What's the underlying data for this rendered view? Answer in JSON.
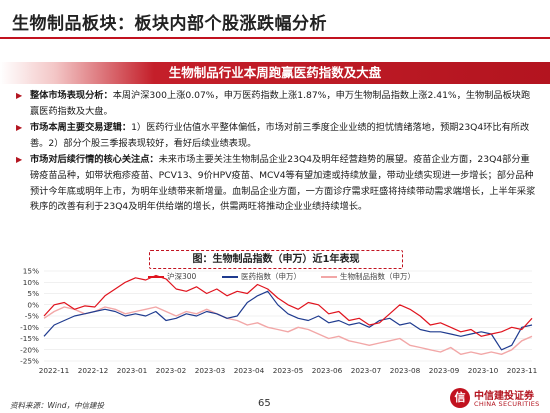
{
  "header": {
    "title": "生物制品板块：板块内部个股涨跌幅分析"
  },
  "banner": {
    "text": "生物制品行业本周跑赢医药指数及大盘"
  },
  "bullets": [
    {
      "label": "整体市场表现分析：",
      "text": "本周沪深300上涨0.07%，申万医药指数上涨1.87%，申万生物制品指数上涨2.41%，生物制品板块跑赢医药指数及大盘。"
    },
    {
      "label": "市场本周主要交易逻辑：",
      "text": "1）医药行业估值水平整体偏低，市场对前三季度企业业绩的担忧情绪落地，预期23Q4环比有所改善。2）部分个股三季报表现较好，看好后续业绩表现。"
    },
    {
      "label": "市场对后续行情的核心关注点：",
      "text": "未来市场主要关注生物制品企业23Q4及明年经营趋势的展望。疫苗企业方面，23Q4部分重磅疫苗品种，如带状疱疹疫苗、PCV13、9价HPV疫苗、MCV4等有望加速或持续放量，带动业绩实现进一步增长；部分品种预计今年底或明年上市，为明年业绩带来新增量。血制品企业方面，一方面诊疗需求旺盛将持续带动需求端增长，上半年采浆秩序的改善有利于23Q4及明年供给端的增长，供需两旺将推动企业业绩持续增长。"
    }
  ],
  "chart_data": {
    "type": "line",
    "title": "图：生物制品指数（申万）近1年表现",
    "x_ticks": [
      "2022-11",
      "2022-12",
      "2023-01",
      "2023-02",
      "2023-03",
      "2023-04",
      "2023-05",
      "2023-06",
      "2023-07",
      "2023-08",
      "2023-09",
      "2023-10",
      "2023-11"
    ],
    "y_ticks": [
      "15%",
      "10%",
      "5%",
      "0%",
      "-5%",
      "-10%",
      "-15%",
      "-20%",
      "-25%"
    ],
    "ylim": [
      -25,
      15
    ],
    "legend_position": "top",
    "series": [
      {
        "name": "沪深300",
        "color": "#e0141e",
        "values": [
          -5,
          0,
          1,
          -2,
          -0.5,
          -1,
          4,
          7,
          10,
          12,
          11,
          13,
          11.5,
          7,
          6,
          8,
          5,
          7,
          4,
          6,
          5,
          9,
          7,
          3,
          0,
          -2,
          1,
          0,
          -4,
          -3,
          -7,
          -6,
          -9,
          -8,
          -4,
          0,
          -2,
          -5,
          -9,
          -8,
          -10,
          -12,
          -11,
          -14,
          -13,
          -12,
          -10,
          -11,
          -6
        ]
      },
      {
        "name": "医药指数（申万）",
        "color": "#1f3b8f",
        "values": [
          -14,
          -9,
          -7,
          -5,
          -4,
          -3,
          -2,
          -3,
          -5,
          -4,
          -5,
          -3,
          -7,
          -6,
          -4,
          -5,
          -3,
          -4,
          -6,
          -5,
          1,
          4,
          6,
          0,
          -4,
          -6,
          -7,
          -5,
          -8,
          -7,
          -9,
          -8,
          -10,
          -7,
          -6,
          -9,
          -8,
          -11,
          -12,
          -12,
          -13,
          -14,
          -13,
          -12,
          -13,
          -20,
          -18,
          -10,
          -9
        ]
      },
      {
        "name": "生物制品指数（申万）",
        "color": "#f2a7a7",
        "values": [
          -6,
          -3,
          -1,
          -2,
          -4,
          -3,
          -1,
          -2,
          -4,
          -3,
          -2,
          -1,
          -3,
          -5,
          -3,
          -4,
          -2,
          -4,
          -6,
          -7,
          -9,
          -8,
          -10,
          -11,
          -12,
          -10,
          -11,
          -13,
          -15,
          -14,
          -16,
          -17,
          -18,
          -17,
          -16,
          -15,
          -18,
          -19,
          -20,
          -21,
          -19,
          -22,
          -21,
          -22,
          -21,
          -22,
          -20,
          -16,
          -14
        ]
      }
    ]
  },
  "footer": {
    "source": "资料来源：Wind，中信建投",
    "page": "65",
    "logo_cn": "中信建投证券",
    "logo_en": "CHINA SECURITIES",
    "logo_mark": "信"
  }
}
